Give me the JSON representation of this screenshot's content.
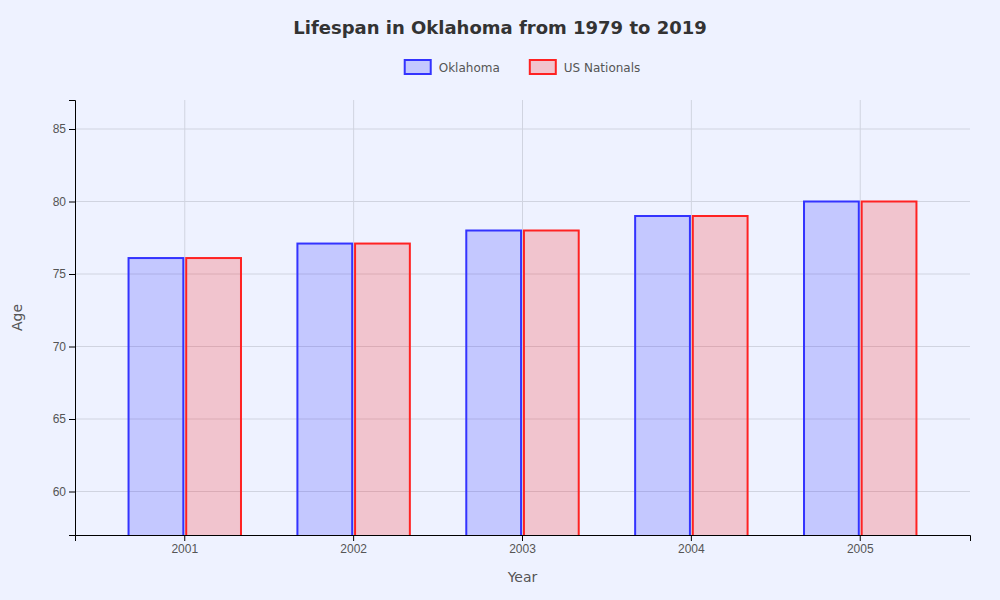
{
  "chart_data": {
    "type": "bar",
    "title": "Lifespan in Oklahoma from 1979 to 2019",
    "xlabel": "Year",
    "ylabel": "Age",
    "categories": [
      "2001",
      "2002",
      "2003",
      "2004",
      "2005"
    ],
    "series": [
      {
        "name": "Oklahoma",
        "color": "#3333ff",
        "values": [
          76.1,
          77.1,
          78.0,
          79.0,
          80.0
        ]
      },
      {
        "name": "US Nationals",
        "color": "#ff2222",
        "values": [
          76.1,
          77.1,
          78.0,
          79.0,
          80.0
        ]
      }
    ],
    "ylim": [
      57,
      87
    ],
    "yticks": [
      60,
      65,
      70,
      75,
      80,
      85
    ],
    "grid": true,
    "legend": "top"
  }
}
